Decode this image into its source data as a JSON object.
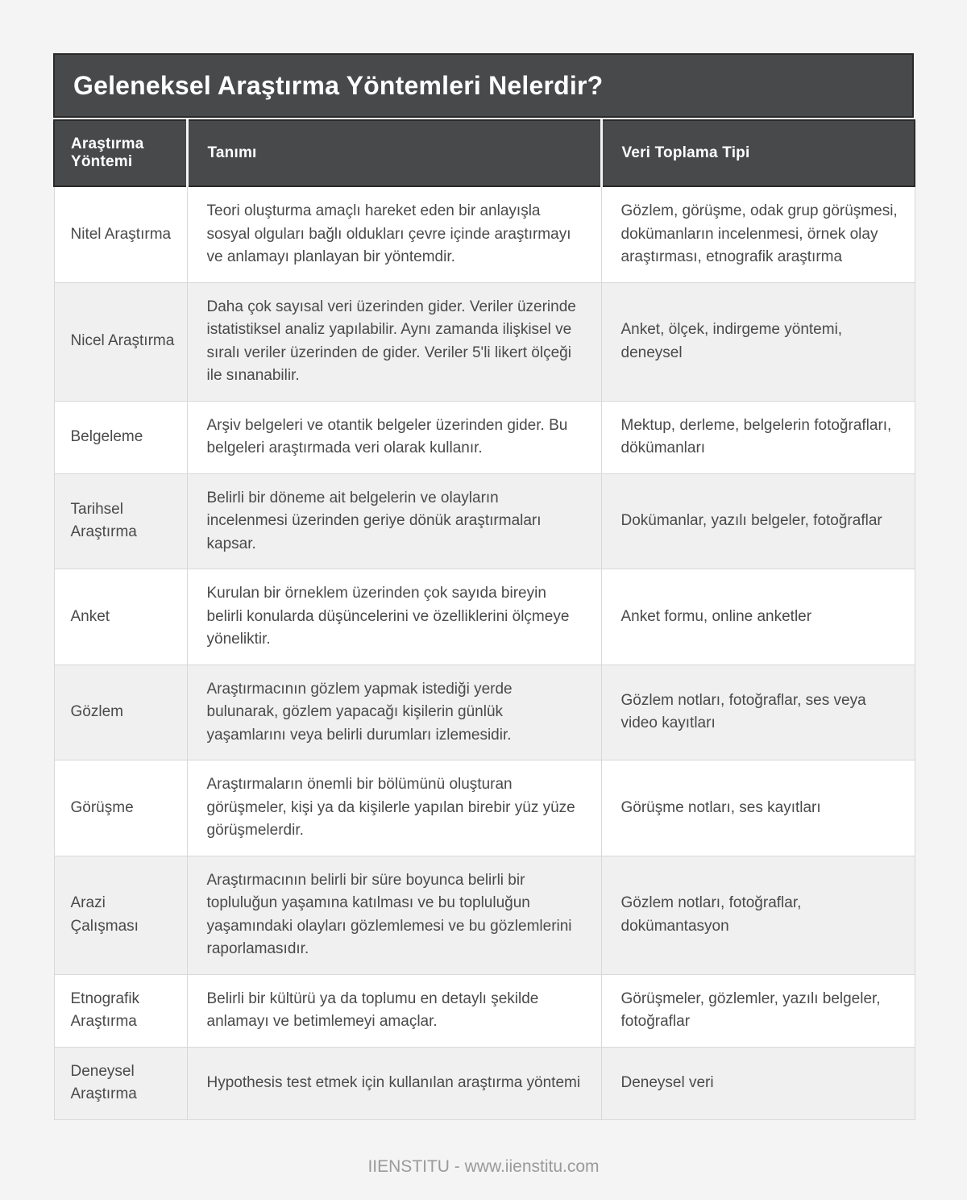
{
  "page": {
    "title": "Geleneksel Araştırma Yöntemleri Nelerdir?",
    "footer": "IIENSTITU - www.iienstitu.com"
  },
  "colors": {
    "page_bg": "#f4f4f5",
    "header_bg": "#48494b",
    "header_border": "#2a2a2a",
    "header_text": "#ffffff",
    "body_text": "#4a4a4a",
    "cell_border": "#d8d8d8",
    "row_alt_bg": "#f0f0f0",
    "row_bg": "#ffffff",
    "footer_text": "#9a9a9a"
  },
  "table": {
    "columns": [
      "Araştırma Yöntemi",
      "Tanımı",
      "Veri Toplama Tipi"
    ],
    "rows": [
      {
        "method": "Nitel Araştırma",
        "definition": "Teori oluşturma amaçlı hareket eden bir anlayışla sosyal olguları bağlı oldukları çevre içinde araştırmayı ve anlamayı planlayan bir yöntemdir.",
        "data_type": "Gözlem, görüşme, odak grup görüşmesi, dokümanların incelenmesi, örnek olay araştırması, etnografik araştırma"
      },
      {
        "method": "Nicel Araştırma",
        "definition": "Daha çok sayısal veri üzerinden gider. Veriler üzerinde istatistiksel analiz yapılabilir. Aynı zamanda ilişkisel ve sıralı veriler üzerinden de gider. Veriler 5'li likert ölçeği ile sınanabilir.",
        "data_type": "Anket, ölçek, indirgeme yöntemi, deneysel"
      },
      {
        "method": "Belgeleme",
        "definition": "Arşiv belgeleri ve otantik belgeler üzerinden gider. Bu belgeleri araştırmada veri olarak kullanır.",
        "data_type": "Mektup, derleme, belgelerin fotoğrafları, dökümanları"
      },
      {
        "method": "Tarihsel Araştırma",
        "definition": "Belirli bir döneme ait belgelerin ve olayların incelenmesi üzerinden geriye dönük araştırmaları kapsar.",
        "data_type": "Dokümanlar, yazılı belgeler, fotoğraflar"
      },
      {
        "method": "Anket",
        "definition": "Kurulan bir örneklem üzerinden çok sayıda bireyin belirli konularda düşüncelerini ve özelliklerini ölçmeye yöneliktir.",
        "data_type": "Anket formu, online anketler"
      },
      {
        "method": "Gözlem",
        "definition": "Araştırmacının gözlem yapmak istediği yerde bulunarak, gözlem yapacağı kişilerin günlük yaşamlarını veya belirli durumları izlemesidir.",
        "data_type": "Gözlem notları, fotoğraflar, ses veya video kayıtları"
      },
      {
        "method": "Görüşme",
        "definition": "Araştırmaların önemli bir bölümünü oluşturan görüşmeler, kişi ya da kişilerle yapılan birebir yüz yüze görüşmelerdir.",
        "data_type": "Görüşme notları, ses kayıtları"
      },
      {
        "method": "Arazi Çalışması",
        "definition": "Araştırmacının belirli bir süre boyunca belirli bir topluluğun yaşamına katılması ve bu topluluğun yaşamındaki olayları gözlemlemesi ve bu gözlemlerini raporlamasıdır.",
        "data_type": "Gözlem notları, fotoğraflar, dokümantasyon"
      },
      {
        "method": "Etnografik Araştırma",
        "definition": "Belirli bir kültürü ya da toplumu en detaylı şekilde anlamayı ve betimlemeyi amaçlar.",
        "data_type": "Görüşmeler, gözlemler, yazılı belgeler, fotoğraflar"
      },
      {
        "method": "Deneysel Araştırma",
        "definition": "Hypothesis test etmek için kullanılan araştırma yöntemi",
        "data_type": "Deneysel veri"
      }
    ]
  }
}
